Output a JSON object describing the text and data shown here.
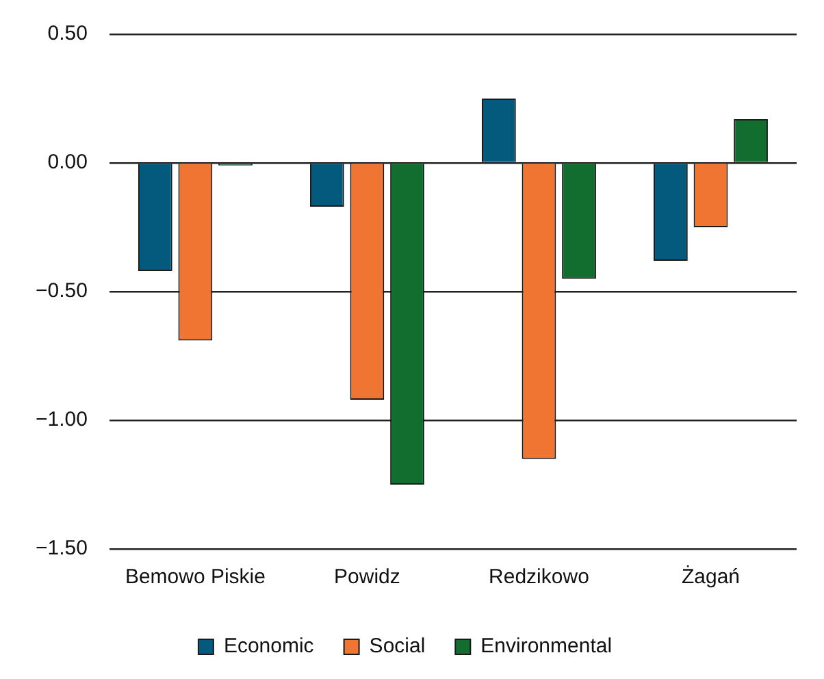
{
  "chart_data": {
    "type": "bar",
    "categories": [
      "Bemowo Piskie",
      "Powidz",
      "Redzikowo",
      "Żagań"
    ],
    "series": [
      {
        "name": "Economic",
        "color": "#045a7d",
        "values": [
          -0.42,
          -0.17,
          0.25,
          -0.38
        ]
      },
      {
        "name": "Social",
        "color": "#f07532",
        "values": [
          -0.69,
          -0.92,
          -1.15,
          -0.25
        ]
      },
      {
        "name": "Environmental",
        "color": "#116e2f",
        "values": [
          -0.01,
          -1.25,
          -0.45,
          0.17
        ]
      }
    ],
    "ylim": [
      -1.5,
      0.5
    ],
    "yticks": [
      {
        "value": -1.5,
        "label": "−1.50"
      },
      {
        "value": -1,
        "label": "−1.00"
      },
      {
        "value": -0.5,
        "label": "−0.50"
      },
      {
        "value": 0,
        "label": "0.00"
      },
      {
        "value": 0.5,
        "label": "0.50"
      }
    ],
    "grid": "y",
    "legend": "bottom"
  }
}
